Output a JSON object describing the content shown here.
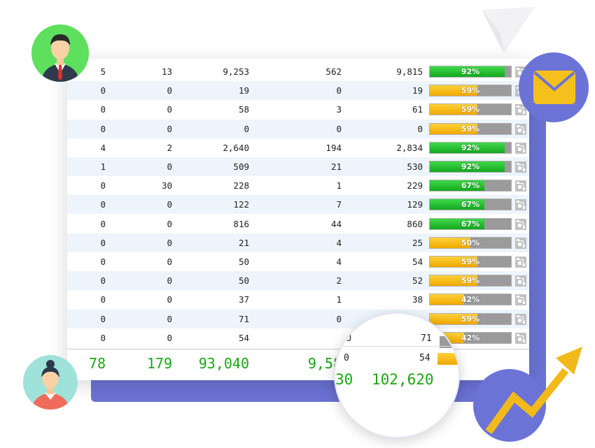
{
  "table": {
    "rows": [
      {
        "cols": [
          "5",
          "13",
          "9,253",
          "562",
          "9,815"
        ],
        "percent": "92%",
        "fill": 0.92,
        "color": "green"
      },
      {
        "cols": [
          "0",
          "0",
          "19",
          "0",
          "19"
        ],
        "percent": "59%",
        "fill": 0.59,
        "color": "yellow"
      },
      {
        "cols": [
          "0",
          "0",
          "58",
          "3",
          "61"
        ],
        "percent": "59%",
        "fill": 0.59,
        "color": "yellow"
      },
      {
        "cols": [
          "0",
          "0",
          "0",
          "0",
          "0"
        ],
        "percent": "59%",
        "fill": 0.59,
        "color": "yellow"
      },
      {
        "cols": [
          "4",
          "2",
          "2,640",
          "194",
          "2,834"
        ],
        "percent": "92%",
        "fill": 0.92,
        "color": "green"
      },
      {
        "cols": [
          "1",
          "0",
          "509",
          "21",
          "530"
        ],
        "percent": "92%",
        "fill": 0.92,
        "color": "green"
      },
      {
        "cols": [
          "0",
          "30",
          "228",
          "1",
          "229"
        ],
        "percent": "67%",
        "fill": 0.67,
        "color": "green"
      },
      {
        "cols": [
          "0",
          "0",
          "122",
          "7",
          "129"
        ],
        "percent": "67%",
        "fill": 0.67,
        "color": "green"
      },
      {
        "cols": [
          "0",
          "0",
          "816",
          "44",
          "860"
        ],
        "percent": "67%",
        "fill": 0.67,
        "color": "green"
      },
      {
        "cols": [
          "0",
          "0",
          "21",
          "4",
          "25"
        ],
        "percent": "50%",
        "fill": 0.5,
        "color": "yellow"
      },
      {
        "cols": [
          "0",
          "0",
          "50",
          "4",
          "54"
        ],
        "percent": "59%",
        "fill": 0.59,
        "color": "yellow"
      },
      {
        "cols": [
          "0",
          "0",
          "50",
          "2",
          "52"
        ],
        "percent": "59%",
        "fill": 0.59,
        "color": "yellow"
      },
      {
        "cols": [
          "0",
          "0",
          "37",
          "1",
          "38"
        ],
        "percent": "42%",
        "fill": 0.42,
        "color": "yellow"
      },
      {
        "cols": [
          "0",
          "0",
          "71",
          "0",
          ""
        ],
        "percent": "59%",
        "fill": 0.59,
        "color": "yellow"
      },
      {
        "cols": [
          "0",
          "0",
          "54",
          "",
          ""
        ],
        "percent": "42%",
        "fill": 0.42,
        "color": "yellow"
      }
    ],
    "totals": [
      "78",
      "179",
      "93,040",
      "9,58"
    ]
  },
  "magnifier": {
    "row_a": {
      "left": "J",
      "value": "71"
    },
    "row_b": {
      "left": "0",
      "value": "54"
    },
    "total_left": "30",
    "total": "102,620"
  },
  "icons": {
    "copy": "copy-icon",
    "mail": "mail-icon",
    "trend": "trend-up-arrow-icon",
    "plane": "paper-plane-icon"
  },
  "colors": {
    "accent": "#6c73d6",
    "green": "#1aa514",
    "yellow": "#f3b600",
    "row_alt": "#eef4fc"
  }
}
